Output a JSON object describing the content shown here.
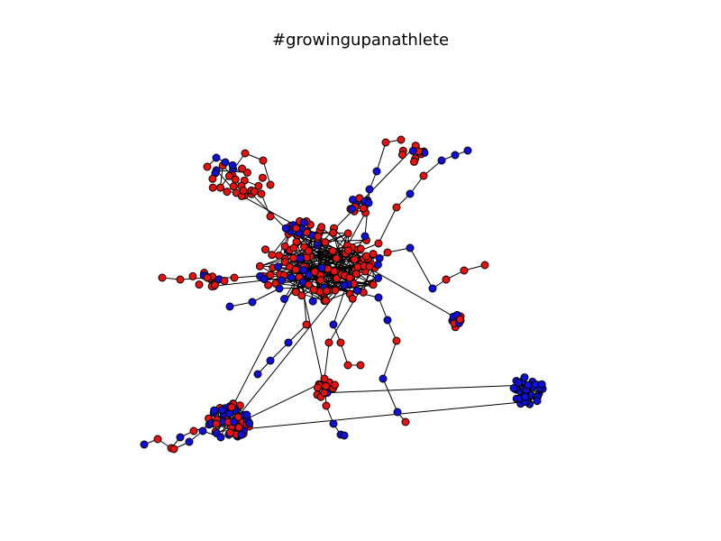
{
  "title": "#growingupanathlete",
  "colors": {
    "red": "#e8110f",
    "blue": "#0f0fd8",
    "edge": "#000000"
  },
  "clusters": [
    {
      "id": "core",
      "color_mix": "mixed"
    },
    {
      "id": "top-left",
      "color_mix": "red"
    },
    {
      "id": "top-center",
      "color_mix": "mixed"
    },
    {
      "id": "top-right-chain",
      "color_mix": "mixed"
    },
    {
      "id": "upper-left-hub",
      "color_mix": "mixed"
    },
    {
      "id": "left-chain",
      "color_mix": "red"
    },
    {
      "id": "right-chain",
      "color_mix": "mixed"
    },
    {
      "id": "bottom-left-hub",
      "color_mix": "mostly-blue"
    },
    {
      "id": "bottom-right-hub",
      "color_mix": "blue"
    },
    {
      "id": "bottom-center",
      "color_mix": "red"
    }
  ]
}
